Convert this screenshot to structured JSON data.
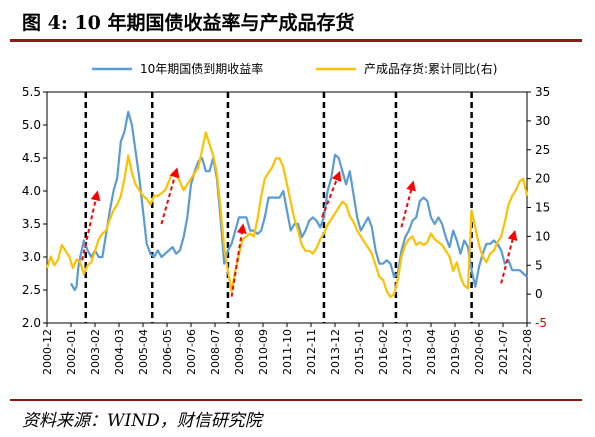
{
  "figure": {
    "title": "图 4:  10 年期国债收益率与产成品存货",
    "source": "资料来源：WIND，财信研究院"
  },
  "chart_data": {
    "type": "line",
    "series": [
      {
        "name": "10年期国债到期收益率",
        "axis": "left",
        "color": "#5b9bd5",
        "points": [
          [
            "2002-01",
            2.6
          ],
          [
            "2002-02",
            2.55
          ],
          [
            "2002-03",
            2.5
          ],
          [
            "2002-04",
            2.55
          ],
          [
            "2002-05",
            2.85
          ],
          [
            "2002-06",
            3.0
          ],
          [
            "2002-08",
            3.25
          ],
          [
            "2002-10",
            3.1
          ],
          [
            "2002-12",
            3.0
          ],
          [
            "2003-02",
            3.1
          ],
          [
            "2003-04",
            3.0
          ],
          [
            "2003-06",
            3.0
          ],
          [
            "2003-08",
            3.35
          ],
          [
            "2003-10",
            3.7
          ],
          [
            "2003-12",
            4.0
          ],
          [
            "2004-02",
            4.2
          ],
          [
            "2004-04",
            4.75
          ],
          [
            "2004-06",
            4.9
          ],
          [
            "2004-08",
            5.2
          ],
          [
            "2004-10",
            5.0
          ],
          [
            "2004-12",
            4.6
          ],
          [
            "2005-02",
            4.2
          ],
          [
            "2005-04",
            3.7
          ],
          [
            "2005-06",
            3.2
          ],
          [
            "2005-08",
            3.05
          ],
          [
            "2005-10",
            3.0
          ],
          [
            "2005-12",
            3.1
          ],
          [
            "2006-02",
            3.0
          ],
          [
            "2006-04",
            3.05
          ],
          [
            "2006-06",
            3.1
          ],
          [
            "2006-08",
            3.15
          ],
          [
            "2006-10",
            3.05
          ],
          [
            "2006-12",
            3.1
          ],
          [
            "2007-02",
            3.3
          ],
          [
            "2007-04",
            3.6
          ],
          [
            "2007-06",
            4.1
          ],
          [
            "2007-08",
            4.3
          ],
          [
            "2007-10",
            4.45
          ],
          [
            "2007-12",
            4.5
          ],
          [
            "2008-02",
            4.3
          ],
          [
            "2008-04",
            4.3
          ],
          [
            "2008-06",
            4.5
          ],
          [
            "2008-08",
            4.2
          ],
          [
            "2008-10",
            3.6
          ],
          [
            "2008-12",
            2.9
          ],
          [
            "2009-02",
            3.1
          ],
          [
            "2009-04",
            3.2
          ],
          [
            "2009-06",
            3.4
          ],
          [
            "2009-08",
            3.6
          ],
          [
            "2009-10",
            3.6
          ],
          [
            "2009-12",
            3.6
          ],
          [
            "2010-02",
            3.4
          ],
          [
            "2010-04",
            3.4
          ],
          [
            "2010-06",
            3.35
          ],
          [
            "2010-08",
            3.4
          ],
          [
            "2010-10",
            3.6
          ],
          [
            "2010-12",
            3.9
          ],
          [
            "2011-02",
            3.9
          ],
          [
            "2011-04",
            3.9
          ],
          [
            "2011-06",
            3.9
          ],
          [
            "2011-08",
            4.0
          ],
          [
            "2011-10",
            3.7
          ],
          [
            "2011-12",
            3.4
          ],
          [
            "2012-02",
            3.5
          ],
          [
            "2012-04",
            3.5
          ],
          [
            "2012-06",
            3.3
          ],
          [
            "2012-08",
            3.4
          ],
          [
            "2012-10",
            3.55
          ],
          [
            "2012-12",
            3.6
          ],
          [
            "2013-02",
            3.55
          ],
          [
            "2013-04",
            3.45
          ],
          [
            "2013-06",
            3.6
          ],
          [
            "2013-08",
            4.0
          ],
          [
            "2013-10",
            4.2
          ],
          [
            "2013-12",
            4.55
          ],
          [
            "2014-02",
            4.5
          ],
          [
            "2014-04",
            4.3
          ],
          [
            "2014-06",
            4.1
          ],
          [
            "2014-08",
            4.3
          ],
          [
            "2014-10",
            3.95
          ],
          [
            "2014-12",
            3.6
          ],
          [
            "2015-02",
            3.4
          ],
          [
            "2015-04",
            3.5
          ],
          [
            "2015-06",
            3.6
          ],
          [
            "2015-08",
            3.45
          ],
          [
            "2015-10",
            3.1
          ],
          [
            "2015-12",
            2.9
          ],
          [
            "2016-02",
            2.9
          ],
          [
            "2016-04",
            2.95
          ],
          [
            "2016-06",
            2.9
          ],
          [
            "2016-08",
            2.7
          ],
          [
            "2016-10",
            2.75
          ],
          [
            "2016-12",
            3.1
          ],
          [
            "2017-02",
            3.3
          ],
          [
            "2017-04",
            3.4
          ],
          [
            "2017-06",
            3.55
          ],
          [
            "2017-08",
            3.6
          ],
          [
            "2017-10",
            3.85
          ],
          [
            "2017-12",
            3.9
          ],
          [
            "2018-02",
            3.85
          ],
          [
            "2018-04",
            3.6
          ],
          [
            "2018-06",
            3.5
          ],
          [
            "2018-08",
            3.6
          ],
          [
            "2018-10",
            3.5
          ],
          [
            "2018-12",
            3.3
          ],
          [
            "2019-02",
            3.15
          ],
          [
            "2019-04",
            3.4
          ],
          [
            "2019-06",
            3.25
          ],
          [
            "2019-08",
            3.05
          ],
          [
            "2019-10",
            3.25
          ],
          [
            "2019-12",
            3.15
          ],
          [
            "2020-02",
            2.8
          ],
          [
            "2020-04",
            2.55
          ],
          [
            "2020-06",
            2.85
          ],
          [
            "2020-08",
            3.05
          ],
          [
            "2020-10",
            3.2
          ],
          [
            "2020-12",
            3.2
          ],
          [
            "2021-02",
            3.25
          ],
          [
            "2021-04",
            3.2
          ],
          [
            "2021-06",
            3.1
          ],
          [
            "2021-08",
            2.9
          ],
          [
            "2021-10",
            2.95
          ],
          [
            "2021-12",
            2.8
          ],
          [
            "2022-02",
            2.8
          ],
          [
            "2022-04",
            2.8
          ],
          [
            "2022-06",
            2.75
          ],
          [
            "2022-08",
            2.7
          ]
        ]
      },
      {
        "name": "产成品存货:累计同比(右)",
        "axis": "right",
        "color": "#ffc000",
        "points": [
          [
            "2000-12",
            4.5
          ],
          [
            "2001-02",
            6.5
          ],
          [
            "2001-04",
            5.0
          ],
          [
            "2001-06",
            6.0
          ],
          [
            "2001-08",
            8.5
          ],
          [
            "2001-10",
            7.5
          ],
          [
            "2001-12",
            6.5
          ],
          [
            "2002-02",
            4.5
          ],
          [
            "2002-04",
            6.0
          ],
          [
            "2002-06",
            5.5
          ],
          [
            "2002-08",
            3.5
          ],
          [
            "2002-10",
            5.0
          ],
          [
            "2002-12",
            5.5
          ],
          [
            "2003-02",
            7.5
          ],
          [
            "2003-04",
            9.5
          ],
          [
            "2003-06",
            10.5
          ],
          [
            "2003-08",
            11.0
          ],
          [
            "2003-10",
            13.0
          ],
          [
            "2003-12",
            14.5
          ],
          [
            "2004-02",
            15.5
          ],
          [
            "2004-04",
            17.0
          ],
          [
            "2004-06",
            20.0
          ],
          [
            "2004-08",
            24.0
          ],
          [
            "2004-10",
            21.0
          ],
          [
            "2004-12",
            19.0
          ],
          [
            "2005-02",
            18.0
          ],
          [
            "2005-04",
            17.0
          ],
          [
            "2005-06",
            16.5
          ],
          [
            "2005-08",
            15.5
          ],
          [
            "2005-10",
            17.0
          ],
          [
            "2005-12",
            17.0
          ],
          [
            "2006-02",
            17.5
          ],
          [
            "2006-04",
            18.0
          ],
          [
            "2006-06",
            19.5
          ],
          [
            "2006-08",
            21.0
          ],
          [
            "2006-10",
            20.5
          ],
          [
            "2006-12",
            19.5
          ],
          [
            "2007-02",
            18.0
          ],
          [
            "2007-04",
            19.0
          ],
          [
            "2007-06",
            20.0
          ],
          [
            "2007-08",
            21.0
          ],
          [
            "2007-10",
            22.0
          ],
          [
            "2007-12",
            25.0
          ],
          [
            "2008-02",
            28.0
          ],
          [
            "2008-04",
            26.0
          ],
          [
            "2008-06",
            24.0
          ],
          [
            "2008-08",
            21.0
          ],
          [
            "2008-10",
            15.0
          ],
          [
            "2008-12",
            8.0
          ],
          [
            "2009-02",
            4.0
          ],
          [
            "2009-04",
            0.5
          ],
          [
            "2009-06",
            4.0
          ],
          [
            "2009-08",
            7.0
          ],
          [
            "2009-10",
            9.5
          ],
          [
            "2009-12",
            10.0
          ],
          [
            "2010-02",
            10.5
          ],
          [
            "2010-04",
            10.0
          ],
          [
            "2010-06",
            13.0
          ],
          [
            "2010-08",
            17.0
          ],
          [
            "2010-10",
            20.0
          ],
          [
            "2010-12",
            21.0
          ],
          [
            "2011-02",
            22.0
          ],
          [
            "2011-04",
            23.5
          ],
          [
            "2011-06",
            23.5
          ],
          [
            "2011-08",
            22.0
          ],
          [
            "2011-10",
            19.0
          ],
          [
            "2011-12",
            16.0
          ],
          [
            "2012-02",
            13.0
          ],
          [
            "2012-04",
            11.0
          ],
          [
            "2012-06",
            8.5
          ],
          [
            "2012-08",
            7.5
          ],
          [
            "2012-10",
            7.5
          ],
          [
            "2012-12",
            7.0
          ],
          [
            "2013-02",
            8.0
          ],
          [
            "2013-04",
            9.5
          ],
          [
            "2013-06",
            10.5
          ],
          [
            "2013-08",
            12.0
          ],
          [
            "2013-10",
            13.0
          ],
          [
            "2013-12",
            14.0
          ],
          [
            "2014-02",
            15.0
          ],
          [
            "2014-04",
            16.0
          ],
          [
            "2014-06",
            15.5
          ],
          [
            "2014-08",
            13.5
          ],
          [
            "2014-10",
            12.5
          ],
          [
            "2014-12",
            11.0
          ],
          [
            "2015-02",
            10.0
          ],
          [
            "2015-04",
            9.0
          ],
          [
            "2015-06",
            8.0
          ],
          [
            "2015-08",
            7.0
          ],
          [
            "2015-10",
            5.0
          ],
          [
            "2015-12",
            3.0
          ],
          [
            "2016-02",
            2.5
          ],
          [
            "2016-04",
            0.5
          ],
          [
            "2016-06",
            -0.5
          ],
          [
            "2016-08",
            0.0
          ],
          [
            "2016-10",
            2.5
          ],
          [
            "2016-12",
            6.5
          ],
          [
            "2017-02",
            8.5
          ],
          [
            "2017-04",
            9.5
          ],
          [
            "2017-06",
            10.0
          ],
          [
            "2017-08",
            8.5
          ],
          [
            "2017-10",
            9.0
          ],
          [
            "2017-12",
            8.5
          ],
          [
            "2018-02",
            9.0
          ],
          [
            "2018-04",
            10.5
          ],
          [
            "2018-06",
            9.5
          ],
          [
            "2018-08",
            9.0
          ],
          [
            "2018-10",
            8.5
          ],
          [
            "2018-12",
            7.5
          ],
          [
            "2019-02",
            6.5
          ],
          [
            "2019-04",
            4.0
          ],
          [
            "2019-06",
            5.5
          ],
          [
            "2019-08",
            3.0
          ],
          [
            "2019-10",
            1.5
          ],
          [
            "2019-12",
            1.0
          ],
          [
            "2020-02",
            14.5
          ],
          [
            "2020-04",
            11.5
          ],
          [
            "2020-06",
            8.5
          ],
          [
            "2020-08",
            6.5
          ],
          [
            "2020-10",
            5.5
          ],
          [
            "2020-12",
            7.0
          ],
          [
            "2021-02",
            7.5
          ],
          [
            "2021-04",
            9.0
          ],
          [
            "2021-06",
            10.0
          ],
          [
            "2021-08",
            12.5
          ],
          [
            "2021-10",
            15.5
          ],
          [
            "2021-12",
            17.0
          ],
          [
            "2022-02",
            18.0
          ],
          [
            "2022-04",
            19.5
          ],
          [
            "2022-06",
            20.0
          ],
          [
            "2022-08",
            17.0
          ]
        ]
      }
    ],
    "x_tick_labels": [
      "2000-12",
      "2002-01",
      "2003-02",
      "2004-03",
      "2005-04",
      "2006-05",
      "2007-06",
      "2008-07",
      "2009-08",
      "2010-09",
      "2011-10",
      "2012-11",
      "2013-12",
      "2015-01",
      "2016-02",
      "2017-03",
      "2018-04",
      "2019-05",
      "2020-06",
      "2021-07",
      "2022-08"
    ],
    "y_left": {
      "ylim": [
        2.0,
        5.5
      ],
      "ticks": [
        "2.0",
        "2.5",
        "3.0",
        "3.5",
        "4.0",
        "4.5",
        "5.0",
        "5.5"
      ]
    },
    "y_right": {
      "ylim": [
        -5,
        35
      ],
      "ticks": [
        "-5",
        "0",
        "5",
        "10",
        "15",
        "20",
        "25",
        "30",
        "35"
      ]
    },
    "x_range": [
      "2000-12",
      "2022-08"
    ],
    "vertical_dashed_lines": [
      "2002-09",
      "2005-09",
      "2009-02",
      "2013-06",
      "2016-09",
      "2020-02"
    ],
    "red_arrows": [
      {
        "from": [
          "2002-07",
          2.95
        ],
        "to": [
          "2003-03",
          3.95
        ]
      },
      {
        "from": [
          "2006-02",
          3.5
        ],
        "to": [
          "2006-10",
          4.3
        ]
      },
      {
        "from": [
          "2009-04",
          2.4
        ],
        "to": [
          "2009-10",
          3.45
        ]
      },
      {
        "from": [
          "2013-05",
          3.6
        ],
        "to": [
          "2014-02",
          4.25
        ]
      },
      {
        "from": [
          "2016-12",
          3.45
        ],
        "to": [
          "2017-06",
          4.1
        ]
      },
      {
        "from": [
          "2021-06",
          2.6
        ],
        "to": [
          "2022-01",
          3.35
        ]
      }
    ],
    "legend_position": "top-center",
    "grid": false,
    "axis_color": "#000000",
    "vline_color": "#000000",
    "arrow_color": "#ff0000"
  }
}
